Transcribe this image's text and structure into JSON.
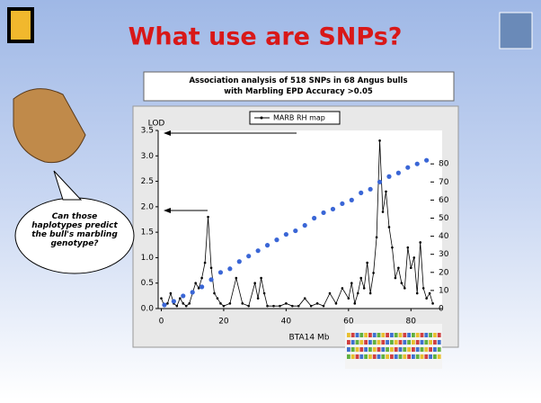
{
  "slide_title": "What use are SNPs?",
  "speech_bubble": "Can those haplotypes predict the bull's marbling genotype?",
  "chart_data": {
    "type": "line",
    "title": "Association analysis of 518 SNPs in 68 Angus bulls with Marbling EPD Accuracy >0.05",
    "y_label": "LOD",
    "x_label": "BTA14 Mb",
    "xlim": [
      -1,
      90
    ],
    "xticks": [
      0,
      20,
      40,
      60,
      80
    ],
    "ylim": [
      0,
      3.5
    ],
    "yticks": [
      {
        "value": 0,
        "label": "0.0"
      },
      {
        "value": 0.5,
        "label": "0.5"
      },
      {
        "value": 1,
        "label": "1.0"
      },
      {
        "value": 1.5,
        "label": "1.5"
      },
      {
        "value": 2,
        "label": "2.0"
      },
      {
        "value": 2.5,
        "label": "2.5"
      },
      {
        "value": 3,
        "label": "3.0"
      },
      {
        "value": 3.5,
        "label": "3.5"
      }
    ],
    "y2lim": [
      0,
      98.5
    ],
    "y2ticks": [
      0,
      10,
      20,
      30,
      40,
      50,
      60,
      70,
      80
    ],
    "legend": "top",
    "series": [
      {
        "name": "MARB RH map",
        "color": "#000000",
        "x": [
          0,
          1,
          2,
          3,
          4,
          5,
          6,
          7,
          8,
          9,
          10,
          11,
          12,
          13,
          14,
          15,
          16,
          17,
          18,
          19,
          20,
          22,
          24,
          26,
          28,
          30,
          31,
          32,
          33,
          34,
          36,
          38,
          40,
          42,
          44,
          46,
          48,
          50,
          52,
          54,
          56,
          58,
          60,
          61,
          62,
          63,
          64,
          65,
          66,
          67,
          68,
          69,
          70,
          71,
          72,
          73,
          74,
          75,
          76,
          77,
          78,
          79,
          80,
          81,
          82,
          83,
          84,
          85,
          86,
          87
        ],
        "values": [
          0.2,
          0.05,
          0.1,
          0.3,
          0.1,
          0.05,
          0.2,
          0.1,
          0.05,
          0.1,
          0.3,
          0.5,
          0.4,
          0.6,
          0.9,
          1.8,
          0.8,
          0.3,
          0.2,
          0.1,
          0.05,
          0.1,
          0.6,
          0.1,
          0.05,
          0.5,
          0.2,
          0.6,
          0.3,
          0.05,
          0.05,
          0.05,
          0.1,
          0.05,
          0.05,
          0.2,
          0.05,
          0.1,
          0.05,
          0.3,
          0.1,
          0.4,
          0.2,
          0.5,
          0.1,
          0.3,
          0.6,
          0.4,
          0.9,
          0.3,
          0.7,
          1.4,
          3.3,
          1.9,
          2.3,
          1.6,
          1.2,
          0.6,
          0.8,
          0.5,
          0.4,
          1.2,
          0.8,
          1.0,
          0.3,
          1.3,
          0.4,
          0.2,
          0.3,
          0.1
        ]
      },
      {
        "color": "#3a66d6",
        "axis": "y2",
        "markers_only": true,
        "x": [
          1,
          4,
          7,
          10,
          13,
          16,
          19,
          22,
          25,
          28,
          31,
          34,
          37,
          40,
          43,
          46,
          49,
          52,
          55,
          58,
          61,
          64,
          67,
          70,
          73,
          76,
          79,
          82,
          85
        ],
        "values": [
          2,
          4,
          7,
          9,
          12,
          16,
          20,
          22,
          26,
          29,
          32,
          35,
          38,
          41,
          43,
          46,
          50,
          53,
          55,
          58,
          60,
          64,
          66,
          70,
          73,
          75,
          78,
          80,
          82
        ]
      }
    ]
  }
}
